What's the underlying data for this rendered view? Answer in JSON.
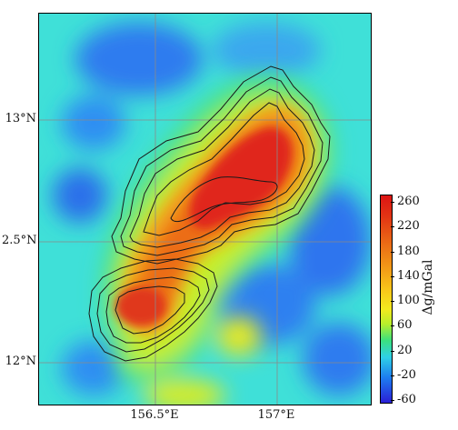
{
  "map": {
    "lat_labels": [
      "13°N",
      "2.5°N",
      "12°N"
    ],
    "lon_labels": [
      "156.5°E",
      "157°E"
    ]
  },
  "colorbar": {
    "title": "Δg/mGal",
    "ticks": [
      "260",
      "220",
      "180",
      "140",
      "100",
      "60",
      "20",
      "-20",
      "-60"
    ],
    "colors": [
      "#2a1fd6",
      "#1d7cf0",
      "#2fd0e6",
      "#3be07e",
      "#b8ee2b",
      "#f3ea1e",
      "#f8c419",
      "#f29a17",
      "#ea6615",
      "#e23414",
      "#dc1414"
    ]
  }
}
